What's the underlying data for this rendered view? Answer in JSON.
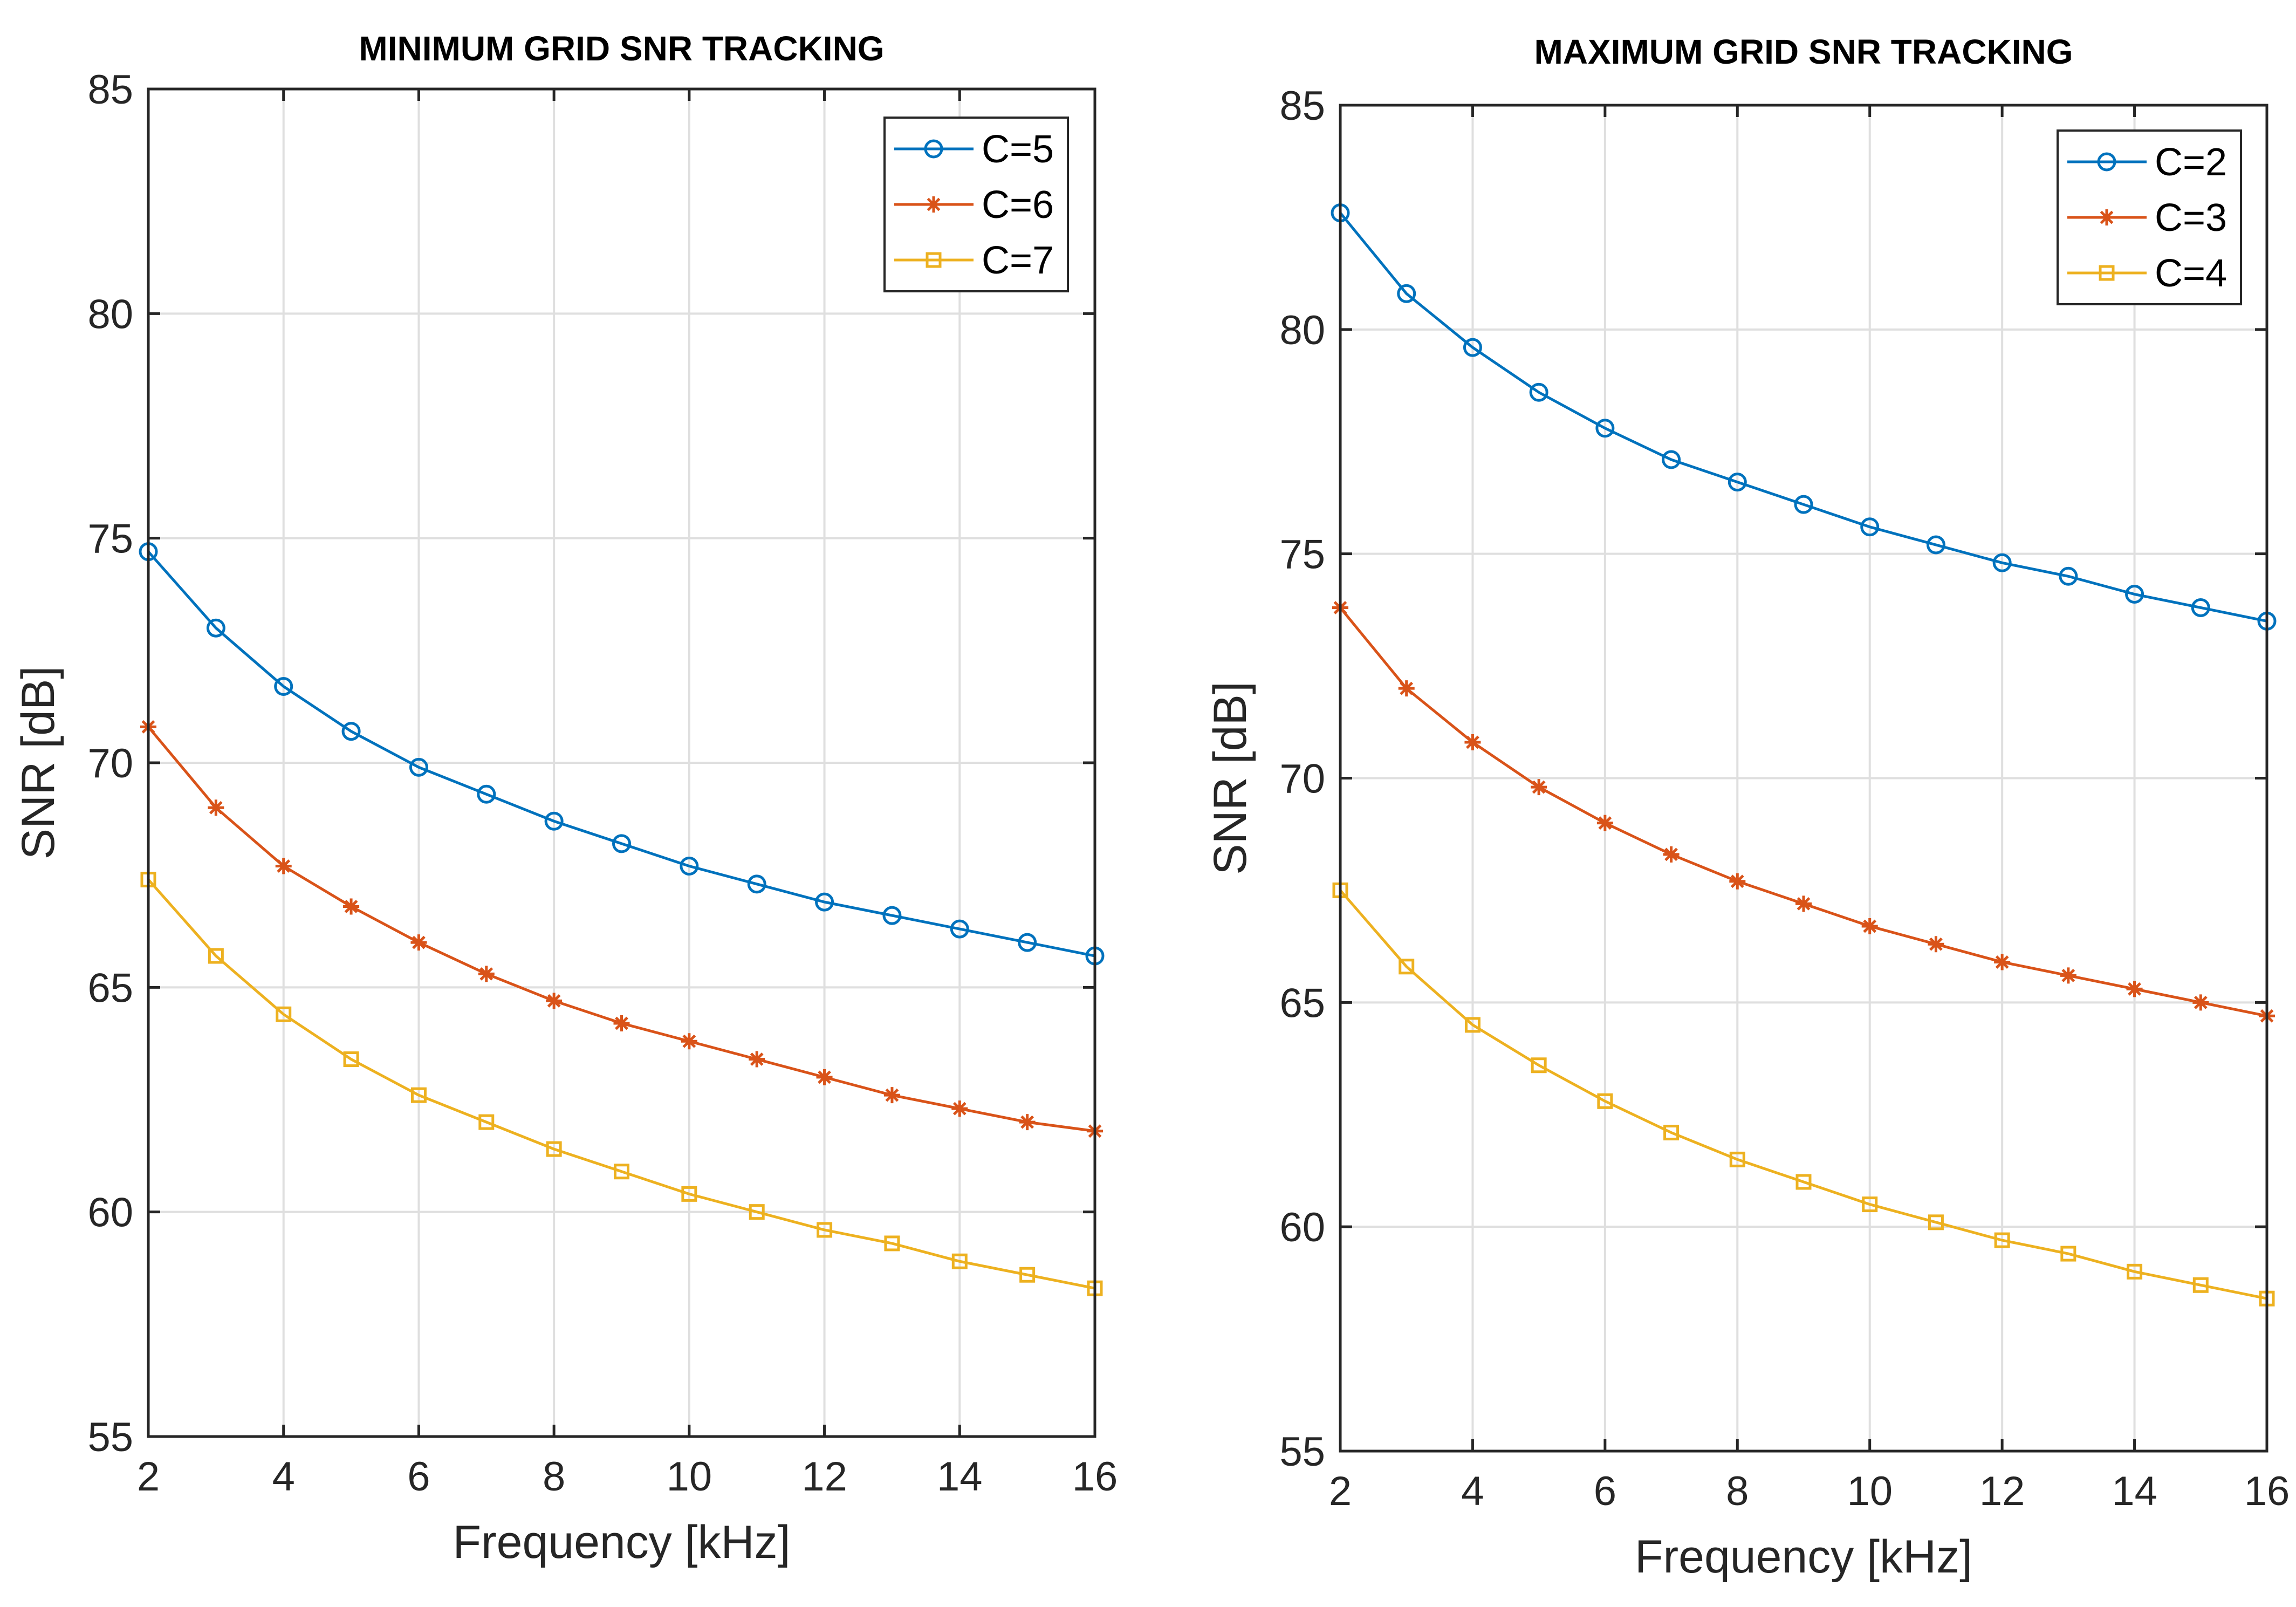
{
  "chart_data": [
    {
      "type": "line",
      "title": "MINIMUM GRID SNR TRACKING",
      "xlabel": "Frequency [kHz]",
      "ylabel": "SNR [dB]",
      "xlim": [
        2,
        16
      ],
      "ylim": [
        55,
        85
      ],
      "xticks": [
        2,
        4,
        6,
        8,
        10,
        12,
        14,
        16
      ],
      "yticks": [
        55,
        60,
        65,
        70,
        75,
        80,
        85
      ],
      "grid": true,
      "legend_position": "top-right",
      "x": [
        2,
        3,
        4,
        5,
        6,
        7,
        8,
        9,
        10,
        11,
        12,
        13,
        14,
        15,
        16
      ],
      "series": [
        {
          "name": "C=5",
          "color": "#0072BD",
          "marker": "circle",
          "values": [
            74.7,
            73.0,
            71.7,
            70.7,
            69.9,
            69.3,
            68.7,
            68.2,
            67.7,
            67.3,
            66.9,
            66.6,
            66.3,
            66.0,
            65.7
          ]
        },
        {
          "name": "C=6",
          "color": "#D95319",
          "marker": "star",
          "values": [
            70.8,
            69.0,
            67.7,
            66.8,
            66.0,
            65.3,
            64.7,
            64.2,
            63.8,
            63.4,
            63.0,
            62.6,
            62.3,
            62.0,
            61.8
          ]
        },
        {
          "name": "C=7",
          "color": "#EDB120",
          "marker": "square",
          "values": [
            67.4,
            65.7,
            64.4,
            63.4,
            62.6,
            62.0,
            61.4,
            60.9,
            60.4,
            60.0,
            59.6,
            59.3,
            58.9,
            58.6,
            58.3
          ]
        }
      ]
    },
    {
      "type": "line",
      "title": "MAXIMUM GRID SNR TRACKING",
      "xlabel": "Frequency [kHz]",
      "ylabel": "SNR [dB]",
      "xlim": [
        2,
        16
      ],
      "ylim": [
        55,
        85
      ],
      "xticks": [
        2,
        4,
        6,
        8,
        10,
        12,
        14,
        16
      ],
      "yticks": [
        55,
        60,
        65,
        70,
        75,
        80,
        85
      ],
      "grid": true,
      "legend_position": "top-right",
      "x": [
        2,
        3,
        4,
        5,
        6,
        7,
        8,
        9,
        10,
        11,
        12,
        13,
        14,
        15,
        16
      ],
      "series": [
        {
          "name": "C=2",
          "color": "#0072BD",
          "marker": "circle",
          "values": [
            82.6,
            80.8,
            79.6,
            78.6,
            77.8,
            77.1,
            76.6,
            76.1,
            75.6,
            75.2,
            74.8,
            74.5,
            74.1,
            73.8,
            73.5
          ]
        },
        {
          "name": "C=3",
          "color": "#D95319",
          "marker": "star",
          "values": [
            73.8,
            72.0,
            70.8,
            69.8,
            69.0,
            68.3,
            67.7,
            67.2,
            66.7,
            66.3,
            65.9,
            65.6,
            65.3,
            65.0,
            64.7
          ]
        },
        {
          "name": "C=4",
          "color": "#EDB120",
          "marker": "square",
          "values": [
            67.5,
            65.8,
            64.5,
            63.6,
            62.8,
            62.1,
            61.5,
            61.0,
            60.5,
            60.1,
            59.7,
            59.4,
            59.0,
            58.7,
            58.4
          ]
        }
      ]
    }
  ]
}
